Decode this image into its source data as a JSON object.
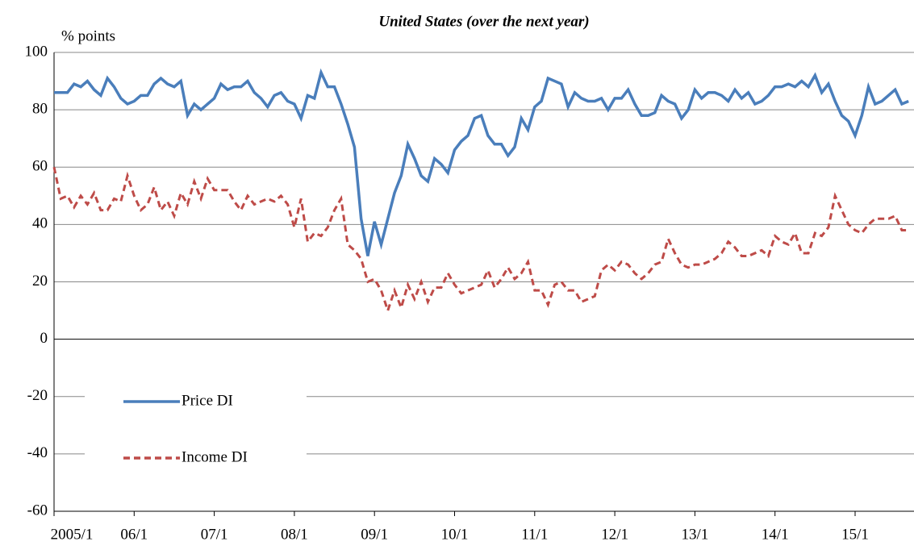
{
  "chart_data": {
    "type": "line",
    "title": "United States (over the next year)",
    "y_label": "% points",
    "categories": [
      "2005/1",
      null,
      null,
      null,
      null,
      null,
      null,
      null,
      null,
      null,
      null,
      null,
      "06/1",
      null,
      null,
      null,
      null,
      null,
      null,
      null,
      null,
      null,
      null,
      null,
      "07/1",
      null,
      null,
      null,
      null,
      null,
      null,
      null,
      null,
      null,
      null,
      null,
      "08/1",
      null,
      null,
      null,
      null,
      null,
      null,
      null,
      null,
      null,
      null,
      null,
      "09/1",
      null,
      null,
      null,
      null,
      null,
      null,
      null,
      null,
      null,
      null,
      null,
      "10/1",
      null,
      null,
      null,
      null,
      null,
      null,
      null,
      null,
      null,
      null,
      null,
      "11/1",
      null,
      null,
      null,
      null,
      null,
      null,
      null,
      null,
      null,
      null,
      null,
      "12/1",
      null,
      null,
      null,
      null,
      null,
      null,
      null,
      null,
      null,
      null,
      null,
      "13/1",
      null,
      null,
      null,
      null,
      null,
      null,
      null,
      null,
      null,
      null,
      null,
      "14/1",
      null,
      null,
      null,
      null,
      null,
      null,
      null,
      null,
      null,
      null,
      null,
      "15/1",
      null,
      null,
      null,
      null,
      null,
      null,
      null,
      null
    ],
    "series": [
      {
        "name": "Price DI",
        "color": "#4a7ebb",
        "line_style": "solid",
        "values": [
          86,
          86,
          86,
          89,
          88,
          90,
          87,
          85,
          91,
          88,
          84,
          82,
          83,
          85,
          85,
          89,
          91,
          89,
          88,
          90,
          78,
          82,
          80,
          82,
          84,
          89,
          87,
          88,
          88,
          90,
          86,
          84,
          81,
          85,
          86,
          83,
          82,
          77,
          85,
          84,
          93,
          88,
          88,
          82,
          75,
          67,
          42,
          29,
          41,
          33,
          42,
          51,
          57,
          68,
          63,
          57,
          55,
          63,
          61,
          58,
          66,
          69,
          71,
          77,
          78,
          71,
          68,
          68,
          64,
          67,
          77,
          73,
          81,
          83,
          91,
          90,
          89,
          81,
          86,
          84,
          83,
          83,
          84,
          80,
          84,
          84,
          87,
          82,
          78,
          78,
          79,
          85,
          83,
          82,
          77,
          80,
          87,
          84,
          86,
          86,
          85,
          83,
          87,
          84,
          86,
          82,
          83,
          85,
          88,
          88,
          89,
          88,
          90,
          88,
          92,
          86,
          89,
          83,
          78,
          76,
          71,
          78,
          88,
          82,
          83,
          85,
          87,
          82,
          83
        ]
      },
      {
        "name": "Income DI",
        "color": "#be4b48",
        "line_style": "dashed",
        "values": [
          60,
          49,
          50,
          46,
          50,
          47,
          51,
          45,
          45,
          49,
          48,
          57,
          50,
          45,
          47,
          53,
          45,
          48,
          43,
          51,
          47,
          55,
          49,
          56,
          52,
          52,
          52,
          48,
          45,
          50,
          47,
          48,
          49,
          48,
          50,
          47,
          39,
          49,
          34,
          37,
          36,
          39,
          45,
          49,
          33,
          31,
          28,
          20,
          21,
          17,
          10,
          17,
          11,
          19,
          14,
          20,
          13,
          18,
          18,
          23,
          19,
          16,
          17,
          18,
          19,
          24,
          18,
          21,
          25,
          21,
          23,
          27,
          17,
          17,
          12,
          19,
          20,
          17,
          17,
          13,
          14,
          15,
          24,
          26,
          24,
          27,
          26,
          23,
          21,
          23,
          26,
          27,
          35,
          30,
          26,
          25,
          26,
          26,
          27,
          28,
          30,
          34,
          32,
          29,
          29,
          30,
          31,
          29,
          36,
          34,
          33,
          37,
          30,
          30,
          37,
          36,
          39,
          50,
          45,
          40,
          38,
          37,
          40,
          42,
          42,
          42,
          43,
          38,
          38
        ]
      }
    ],
    "ylim": [
      -60,
      100
    ],
    "yticks": [
      -60,
      -40,
      -20,
      0,
      20,
      40,
      60,
      80,
      100
    ],
    "grid": true,
    "legend": "lower left"
  }
}
